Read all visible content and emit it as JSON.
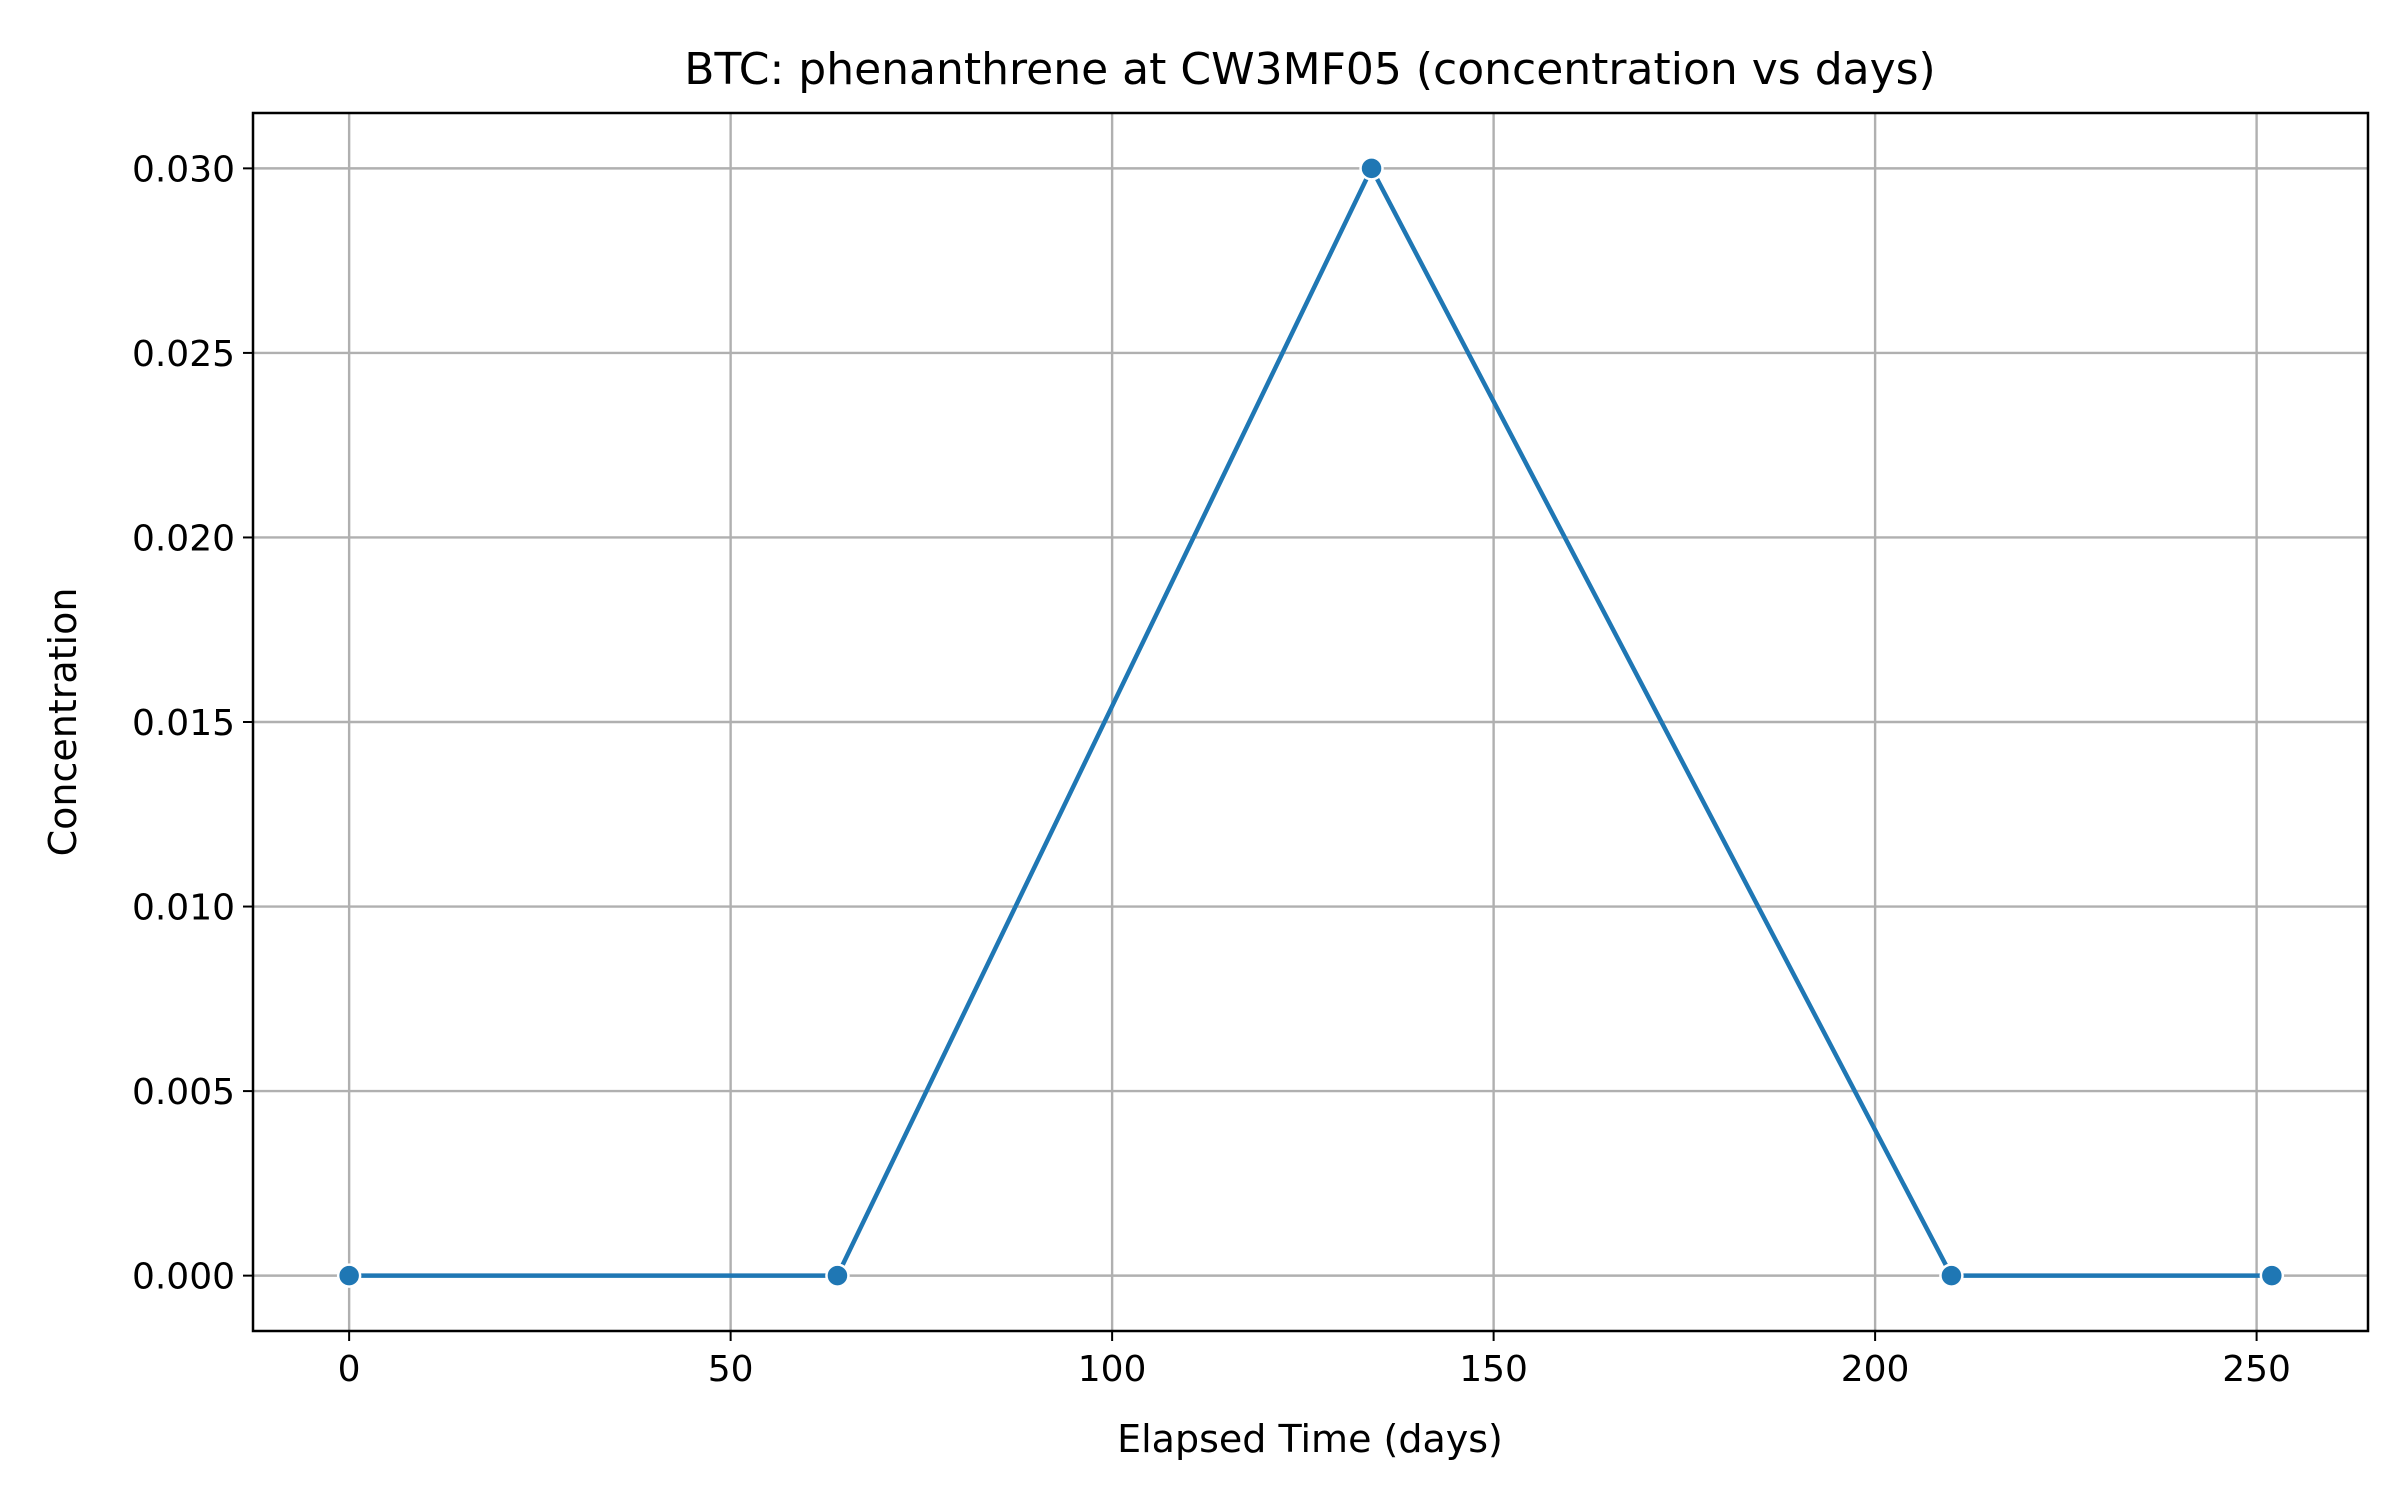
{
  "chart_data": {
    "type": "line",
    "title": "BTC: phenanthrene at CW3MF05 (concentration vs days)",
    "xlabel": "Elapsed Time (days)",
    "ylabel": "Concentration",
    "xlim": [
      -12.6,
      264.6
    ],
    "ylim": [
      -0.0015,
      0.0315
    ],
    "x_ticks": [
      0,
      50,
      100,
      150,
      200,
      250
    ],
    "x_tick_labels": [
      "0",
      "50",
      "100",
      "150",
      "200",
      "250"
    ],
    "y_ticks": [
      0.0,
      0.005,
      0.01,
      0.015,
      0.02,
      0.025,
      0.03
    ],
    "y_tick_labels": [
      "0.000",
      "0.005",
      "0.010",
      "0.015",
      "0.020",
      "0.025",
      "0.030"
    ],
    "grid": true,
    "series": [
      {
        "color": "#1f77b4",
        "x": [
          0,
          64,
          134,
          210,
          252
        ],
        "y": [
          0.0,
          0.0,
          0.03,
          0.0,
          0.0
        ]
      }
    ]
  }
}
